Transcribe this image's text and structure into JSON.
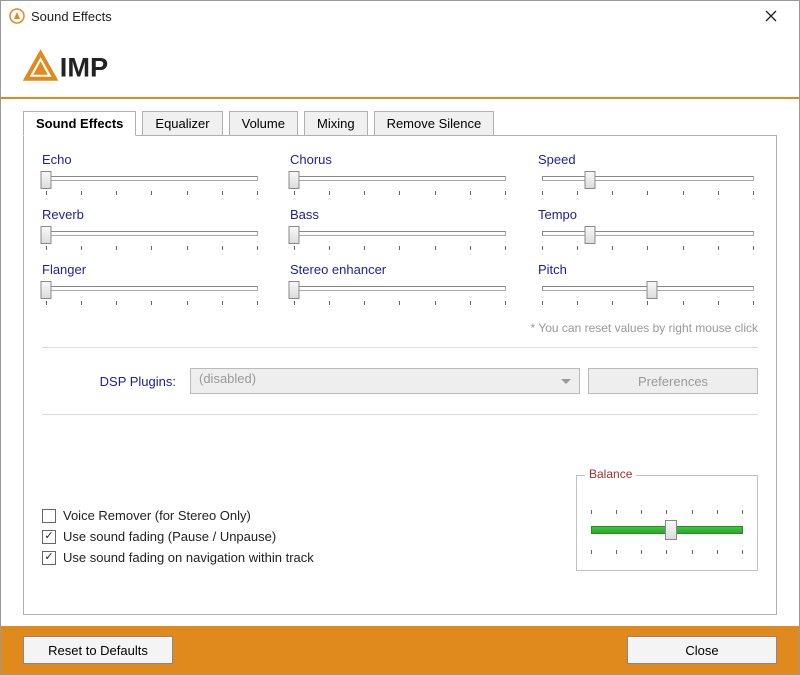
{
  "window": {
    "title": "Sound Effects"
  },
  "logo": {
    "text": "IMP",
    "accent": "#e08a1e"
  },
  "tabs": [
    {
      "label": "Sound Effects",
      "active": true
    },
    {
      "label": "Equalizer",
      "active": false
    },
    {
      "label": "Volume",
      "active": false
    },
    {
      "label": "Mixing",
      "active": false
    },
    {
      "label": "Remove Silence",
      "active": false
    }
  ],
  "sliders": {
    "col1": [
      {
        "name": "Echo",
        "value": 0
      },
      {
        "name": "Reverb",
        "value": 0
      },
      {
        "name": "Flanger",
        "value": 0
      }
    ],
    "col2": [
      {
        "name": "Chorus",
        "value": 0
      },
      {
        "name": "Bass",
        "value": 0
      },
      {
        "name": "Stereo enhancer",
        "value": 0
      }
    ],
    "col3": [
      {
        "name": "Speed",
        "value": 22
      },
      {
        "name": "Tempo",
        "value": 22
      },
      {
        "name": "Pitch",
        "value": 50
      }
    ],
    "ticks": 7,
    "label_color": "#2020a0"
  },
  "hint": "* You can reset values by right mouse click",
  "dsp": {
    "label": "DSP Plugins:",
    "value": "(disabled)",
    "prefs_button": "Preferences"
  },
  "checks": [
    {
      "label": "Voice Remover (for Stereo Only)",
      "checked": false
    },
    {
      "label": "Use sound fading (Pause / Unpause)",
      "checked": true
    },
    {
      "label": "Use sound fading on navigation within track",
      "checked": true
    }
  ],
  "balance": {
    "legend": "Balance",
    "value": 50,
    "ticks": 7,
    "track_color": "#2fbf2f"
  },
  "footer": {
    "reset": "Reset to Defaults",
    "close": "Close"
  },
  "colors": {
    "accent": "#e08a1e",
    "border": "#b0b0b0",
    "hint": "#999999"
  }
}
